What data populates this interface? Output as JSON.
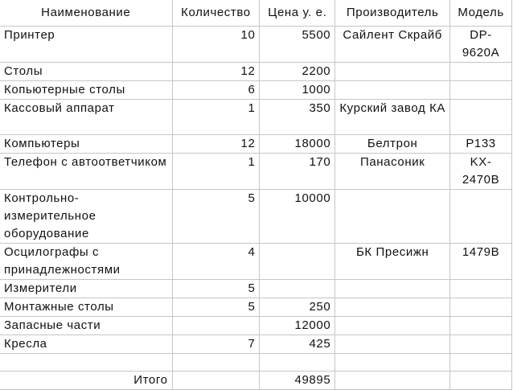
{
  "headers": [
    "Наименование",
    "Количество",
    "Цена у. е.",
    "Производитель",
    "Модель"
  ],
  "rows": [
    {
      "name": "Принтер",
      "qty": "10",
      "price": "5500",
      "maker": "Сайлент Скрайб",
      "model": "DP-9620A"
    },
    {
      "name": "Столы",
      "qty": "12",
      "price": "2200",
      "maker": "",
      "model": ""
    },
    {
      "name": "Копьютерные столы",
      "qty": "6",
      "price": "1000",
      "maker": "",
      "model": ""
    },
    {
      "name": "Кассовый аппарат",
      "qty": "1",
      "price": "350",
      "maker": "Курский завод КА",
      "model": ""
    },
    {
      "name": "Компьютеры",
      "qty": "12",
      "price": "18000",
      "maker": "Белтрон",
      "model": "P133"
    },
    {
      "name": "Телефон с автоответчиком",
      "qty": "1",
      "price": "170",
      "maker": "Панасоник",
      "model": "KX-2470B"
    },
    {
      "name": "Контрольно-измерительное оборудование",
      "qty": "5",
      "price": "10000",
      "maker": "",
      "model": ""
    },
    {
      "name": "Осцилографы с принадлежностями",
      "qty": "4",
      "price": "",
      "maker": "БК Пресижн",
      "model": "1479B"
    },
    {
      "name": "Измерители",
      "qty": "5",
      "price": "",
      "maker": "",
      "model": ""
    },
    {
      "name": "Монтажные столы",
      "qty": "5",
      "price": "250",
      "maker": "",
      "model": ""
    },
    {
      "name": "Запасные части",
      "qty": "",
      "price": "12000",
      "maker": "",
      "model": ""
    },
    {
      "name": "Кресла",
      "qty": "7",
      "price": "425",
      "maker": "",
      "model": ""
    },
    {
      "name": "",
      "qty": "",
      "price": "",
      "maker": "",
      "model": ""
    }
  ],
  "total": {
    "label": "Итого",
    "price": "49895"
  }
}
